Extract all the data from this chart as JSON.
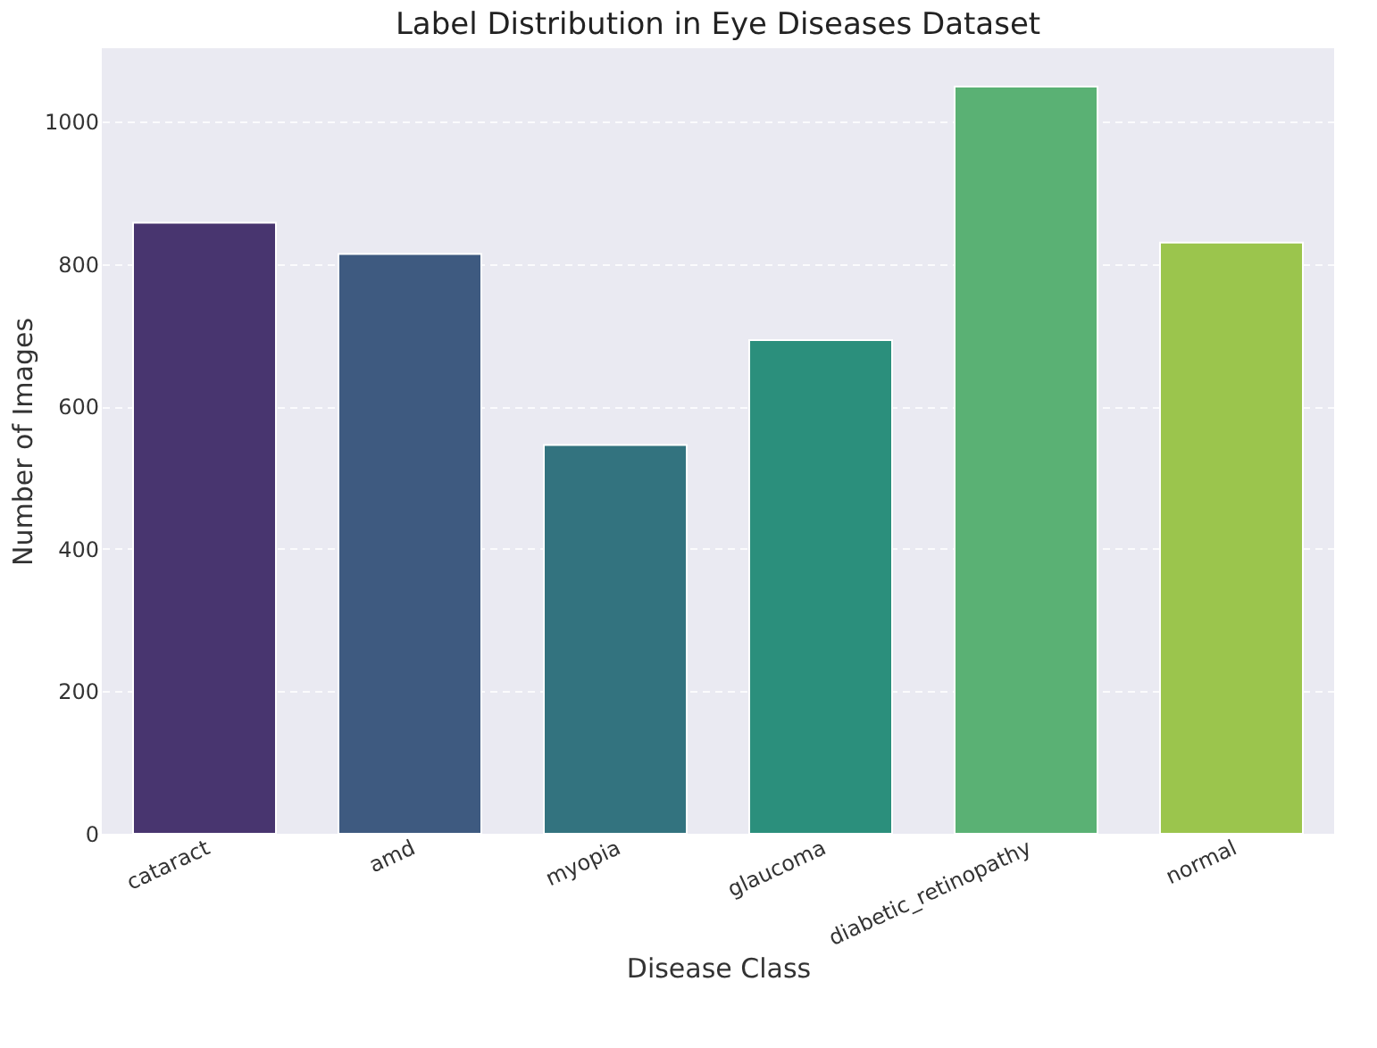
{
  "chart_data": {
    "type": "bar",
    "title": "Label Distribution in Eye Diseases Dataset",
    "xlabel": "Disease Class",
    "ylabel": "Number of Images",
    "categories": [
      "cataract",
      "amd",
      "myopia",
      "glaucoma",
      "diabetic_retinopathy",
      "normal"
    ],
    "values": [
      858,
      814,
      546,
      693,
      1049,
      830
    ],
    "colors": [
      "#48356f",
      "#3e5a80",
      "#33737f",
      "#2b8f7c",
      "#5ab174",
      "#9bc54d"
    ],
    "ylim": [
      0,
      1103
    ],
    "yticks": [
      0,
      200,
      400,
      600,
      800,
      1000
    ],
    "grid": "y"
  }
}
